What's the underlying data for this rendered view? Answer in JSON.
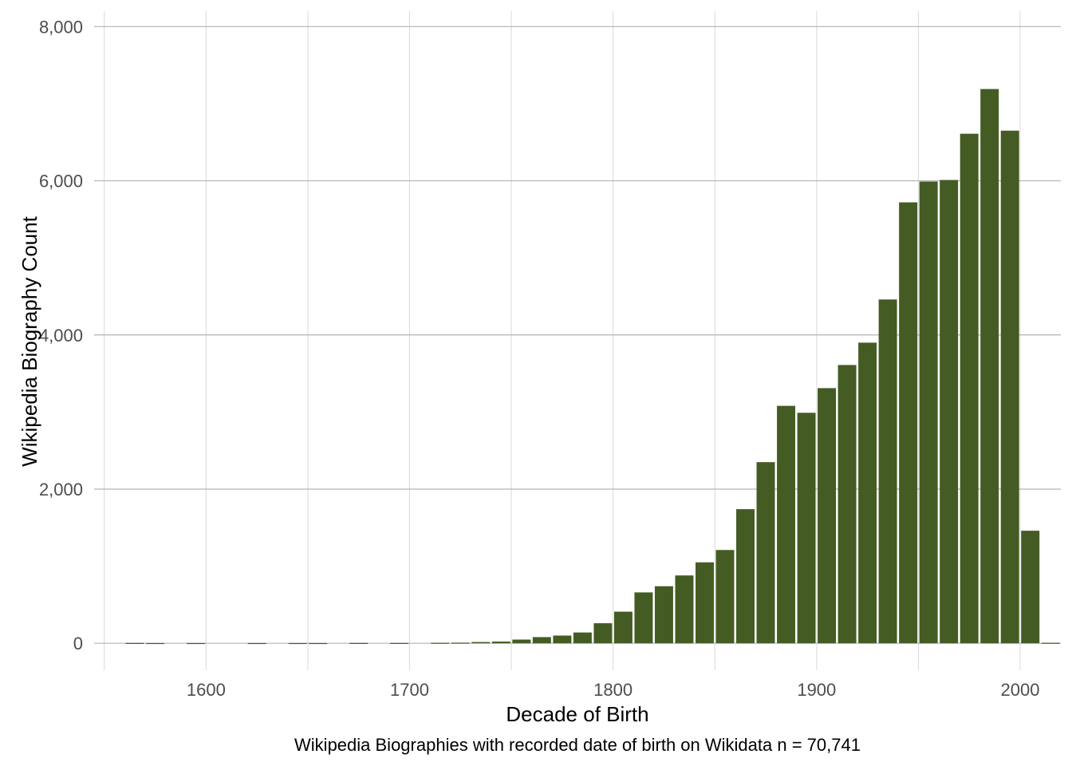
{
  "chart_data": {
    "type": "bar",
    "xlabel": "Decade of Birth",
    "ylabel": "Wikipedia Biography Count",
    "caption": "Wikipedia Biographies with recorded date of birth on Wikidata n = 70,741",
    "xlim": [
      1545,
      2020
    ],
    "ylim": [
      -350,
      8200
    ],
    "bar_width_years": 9,
    "x_ticks": [
      1600,
      1700,
      1800,
      1900,
      2000
    ],
    "x_tick_labels": [
      "1600",
      "1700",
      "1800",
      "1900",
      "2000"
    ],
    "x_minor_ticks": [
      1550,
      1650,
      1750,
      1850,
      1950
    ],
    "y_ticks": [
      0,
      2000,
      4000,
      6000,
      8000
    ],
    "y_tick_labels": [
      "0",
      "2,000",
      "4,000",
      "6,000",
      "8,000"
    ],
    "bar_color": "#445C23",
    "grid": true,
    "decades": [
      1560,
      1570,
      1590,
      1620,
      1640,
      1650,
      1670,
      1690,
      1710,
      1720,
      1730,
      1740,
      1750,
      1760,
      1770,
      1780,
      1790,
      1800,
      1810,
      1820,
      1830,
      1840,
      1850,
      1860,
      1870,
      1880,
      1890,
      1900,
      1910,
      1920,
      1930,
      1940,
      1950,
      1960,
      1970,
      1980,
      1990,
      2000,
      2010
    ],
    "values": [
      4,
      3,
      3,
      3,
      3,
      3,
      4,
      4,
      6,
      8,
      16,
      22,
      48,
      80,
      100,
      140,
      260,
      410,
      660,
      740,
      880,
      1050,
      1210,
      1740,
      2350,
      3080,
      2990,
      3310,
      3610,
      3900,
      4460,
      5720,
      5990,
      6010,
      6610,
      7190,
      6650,
      1460,
      6
    ]
  }
}
